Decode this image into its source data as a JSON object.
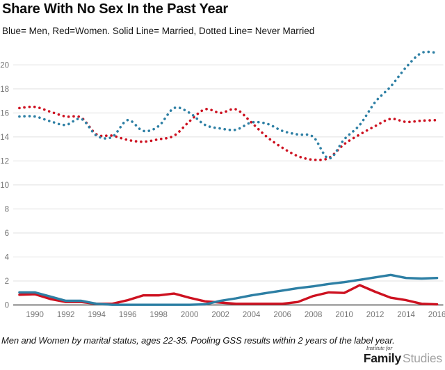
{
  "chart_data": {
    "type": "line",
    "title": "Share With No Sex In the Past Year",
    "subtitle": "Blue= Men, Red=Women. Solid Line= Married, Dotted Line= Never Married",
    "caption": "Men and Women by marital status, ages 22-35. Pooling GSS results within 2 years of the label year.",
    "xlabel": "",
    "ylabel": "",
    "grid": true,
    "legend_position": "none (encoded in subtitle)",
    "xlim": [
      1988.6,
      2016.4
    ],
    "ylim": [
      0,
      21.9
    ],
    "xticks": [
      1990,
      1992,
      1994,
      1996,
      1998,
      2000,
      2002,
      2004,
      2006,
      2008,
      2010,
      2012,
      2014,
      2016
    ],
    "yticks": [
      0,
      2,
      4,
      6,
      8,
      10,
      12,
      14,
      16,
      18,
      20
    ],
    "x": [
      1989,
      1990,
      1991,
      1992,
      1993,
      1994,
      1995,
      1996,
      1997,
      1998,
      1999,
      2000,
      2001,
      2002,
      2003,
      2004,
      2005,
      2006,
      2007,
      2008,
      2009,
      2010,
      2011,
      2012,
      2013,
      2014,
      2015,
      2016
    ],
    "series": [
      {
        "name": "Never Married Women",
        "color_key": "women",
        "style": "dotted",
        "values": [
          16.4,
          16.5,
          16.1,
          15.7,
          15.6,
          14.2,
          14.1,
          13.75,
          13.6,
          13.8,
          14.1,
          15.3,
          16.3,
          16.0,
          16.3,
          15.2,
          14.0,
          13.1,
          12.4,
          12.1,
          12.25,
          13.4,
          14.2,
          14.9,
          15.5,
          15.25,
          15.35,
          15.4
        ]
      },
      {
        "name": "Never Married Men",
        "color_key": "men",
        "style": "dotted",
        "values": [
          15.7,
          15.7,
          15.3,
          15.0,
          15.5,
          14.1,
          14.0,
          15.4,
          14.5,
          14.9,
          16.4,
          16.0,
          15.0,
          14.7,
          14.6,
          15.2,
          15.1,
          14.5,
          14.2,
          14.0,
          12.2,
          13.8,
          15.0,
          16.9,
          18.2,
          19.8,
          21.0,
          21.0
        ]
      },
      {
        "name": "Married Women",
        "color_key": "women",
        "style": "solid",
        "values": [
          0.85,
          0.9,
          0.5,
          0.25,
          0.25,
          0.1,
          0.1,
          0.4,
          0.8,
          0.8,
          0.95,
          0.6,
          0.3,
          0.2,
          0.1,
          0.1,
          0.1,
          0.1,
          0.25,
          0.75,
          1.05,
          1.0,
          1.65,
          1.1,
          0.6,
          0.4,
          0.1,
          0.05
        ]
      },
      {
        "name": "Married Men",
        "color_key": "men",
        "style": "solid",
        "values": [
          1.05,
          1.05,
          0.7,
          0.35,
          0.35,
          0.1,
          0.02,
          0.02,
          0.02,
          0.02,
          0.02,
          0.02,
          0.05,
          0.35,
          0.55,
          0.8,
          1.0,
          1.2,
          1.4,
          1.55,
          1.75,
          1.9,
          2.1,
          2.3,
          2.5,
          2.25,
          2.2,
          2.25
        ]
      }
    ]
  },
  "colors": {
    "men": "#2d7fa4",
    "women": "#cd1120",
    "grid": "#e0e0e0",
    "axis": "#4d4d4d",
    "tick_label": "#757575"
  },
  "footer": {
    "logo": {
      "top": "Institute for",
      "brand_bold": "Family",
      "brand_light": "Studies"
    }
  }
}
